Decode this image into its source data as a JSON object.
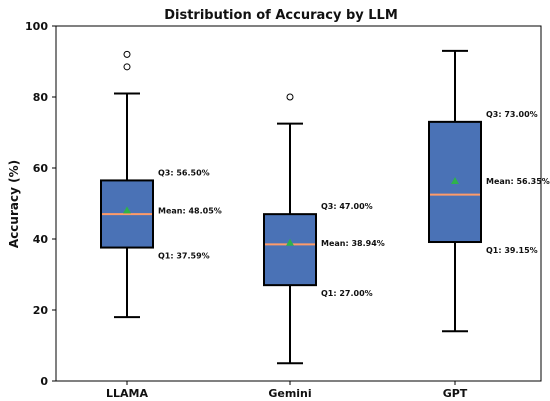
{
  "chart_data": {
    "type": "box",
    "title": "Distribution of Accuracy by LLM",
    "xlabel": "",
    "ylabel": "Accuracy (%)",
    "ylim": [
      0,
      100
    ],
    "yticks": [
      0,
      20,
      40,
      60,
      80,
      100
    ],
    "grid": false,
    "legend": "none",
    "colors": {
      "box_fill": "#4a72b6",
      "box_edge": "#000000",
      "median": "#ff9b69",
      "mean": "#2fb24b",
      "whisker": "#000000",
      "outlier": "#000000"
    },
    "categories": [
      "LLAMA",
      "Gemini",
      "GPT"
    ],
    "boxes": [
      {
        "name": "LLAMA",
        "whisker_low": 18.0,
        "q1": 37.59,
        "median": 47.0,
        "mean": 48.05,
        "q3": 56.5,
        "whisker_high": 81.0,
        "outliers": [
          88.5,
          92.0
        ],
        "labels": {
          "q1": "Q1: 37.59%",
          "mean": "Mean: 48.05%",
          "q3": "Q3: 56.50%"
        }
      },
      {
        "name": "Gemini",
        "whisker_low": 5.0,
        "q1": 27.0,
        "median": 38.5,
        "mean": 38.94,
        "q3": 47.0,
        "whisker_high": 72.5,
        "outliers": [
          80.0
        ],
        "labels": {
          "q1": "Q1: 27.00%",
          "mean": "Mean: 38.94%",
          "q3": "Q3: 47.00%"
        }
      },
      {
        "name": "GPT",
        "whisker_low": 14.0,
        "q1": 39.15,
        "median": 52.5,
        "mean": 56.35,
        "q3": 73.0,
        "whisker_high": 93.0,
        "outliers": [],
        "labels": {
          "q1": "Q1: 39.15%",
          "mean": "Mean: 56.35%",
          "q3": "Q3: 73.00%"
        }
      }
    ]
  }
}
